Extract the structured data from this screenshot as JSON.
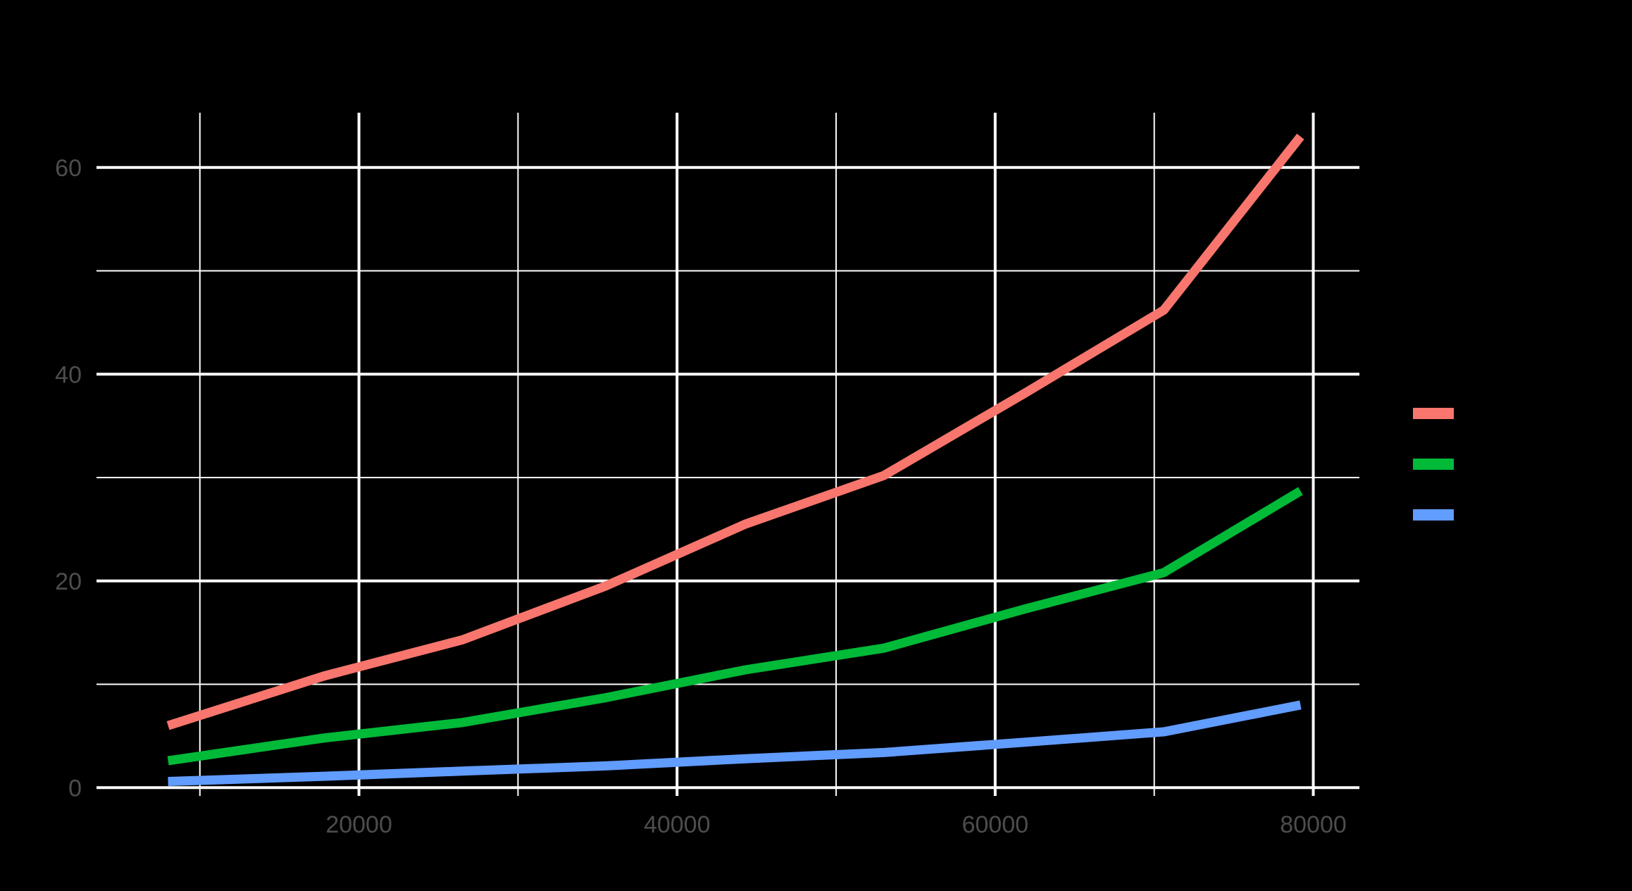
{
  "chart_data": {
    "type": "line",
    "background": "#000000",
    "grid": true,
    "grid_color": "#ffffff",
    "tick_label_color": "#4d4d4d",
    "xlim": [
      3500,
      82900
    ],
    "ylim": [
      -0.8,
      65.3
    ],
    "x_ticks": [
      20000,
      40000,
      60000,
      80000
    ],
    "x_tick_labels": [
      "20000",
      "40000",
      "60000",
      "80000"
    ],
    "x_minor_ticks": [
      10000,
      30000,
      50000,
      70000
    ],
    "y_ticks": [
      0,
      20,
      40,
      60
    ],
    "y_tick_labels": [
      "0",
      "20",
      "40",
      "60"
    ],
    "y_minor_ticks": [
      10,
      30,
      50
    ],
    "legend_position": "right",
    "x": [
      8000,
      17800,
      26500,
      35500,
      44300,
      53000,
      61900,
      70600,
      79200
    ],
    "series": [
      {
        "color": "#F8766D",
        "values": [
          6.0,
          10.8,
          14.3,
          19.5,
          25.5,
          30.2,
          38.2,
          46.2,
          63.0
        ]
      },
      {
        "color": "#00BA38",
        "values": [
          2.6,
          4.8,
          6.3,
          8.7,
          11.4,
          13.5,
          17.3,
          20.8,
          28.7
        ]
      },
      {
        "color": "#619CFF",
        "values": [
          0.6,
          1.1,
          1.6,
          2.1,
          2.8,
          3.4,
          4.4,
          5.4,
          8.0
        ]
      }
    ]
  }
}
